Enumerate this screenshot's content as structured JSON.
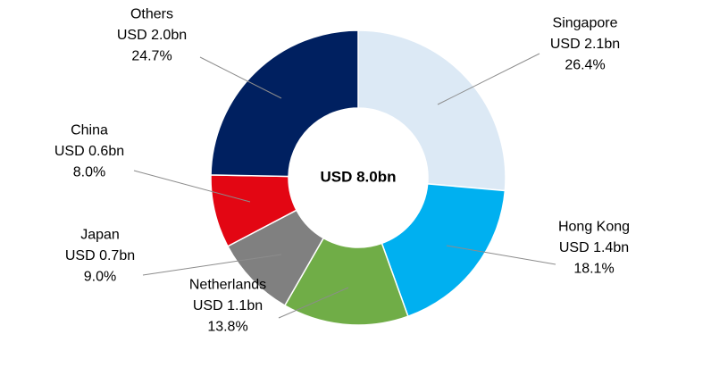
{
  "chart_data": {
    "type": "donut",
    "center_label": "USD 8.0bn",
    "categories": [
      "Singapore",
      "Hong Kong",
      "Netherlands",
      "Japan",
      "China",
      "Others"
    ],
    "values": [
      26.4,
      18.1,
      13.8,
      9.0,
      8.0,
      24.7
    ],
    "value_labels": [
      "26.4%",
      "18.1%",
      "13.8%",
      "9.0%",
      "8.0%",
      "24.7%"
    ],
    "amount_labels": [
      "USD 2.1bn",
      "USD 1.4bn",
      "USD 1.1bn",
      "USD 0.7bn",
      "USD 0.6bn",
      "USD 2.0bn"
    ],
    "colors": [
      "#dce9f5",
      "#00b0f0",
      "#70ad47",
      "#808080",
      "#e30613",
      "#002060"
    ]
  }
}
